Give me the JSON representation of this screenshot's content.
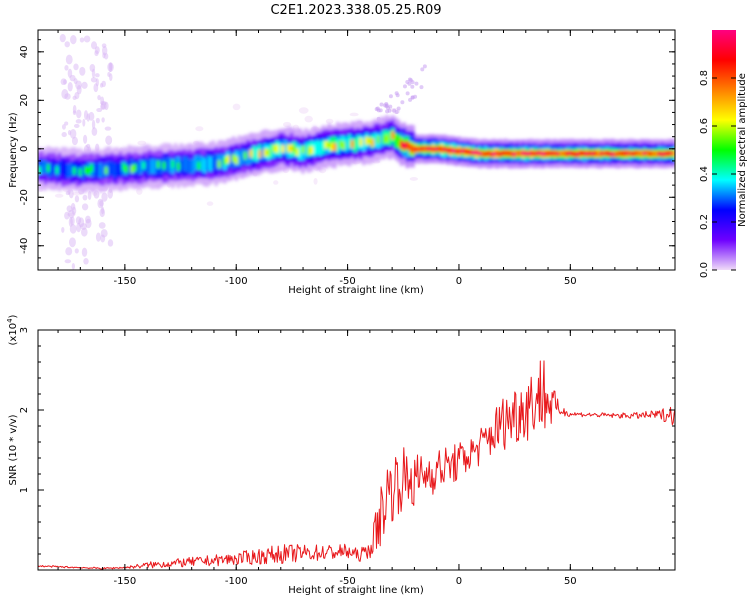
{
  "title": "C2E1.2023.338.05.25.R09",
  "chart_data": [
    {
      "type": "heatmap",
      "xlabel": "Height of straight line (km)",
      "ylabel": "Frequency (Hz)",
      "xlim": [
        -189,
        97
      ],
      "ylim": [
        -50,
        49
      ],
      "xticks": [
        -150,
        -100,
        -50,
        0,
        50
      ],
      "yticks": [
        -40,
        -20,
        0,
        20,
        40
      ],
      "colorbar": {
        "label": "Normalized spectral amplitude",
        "range": [
          0,
          1
        ],
        "ticks": [
          "0.0",
          "0.2",
          "0.4",
          "0.6",
          "0.8"
        ],
        "colors": [
          "#f0dcf8",
          "#6e00ff",
          "#0000ff",
          "#00ffff",
          "#00ff00",
          "#ffff00",
          "#ff8000",
          "#ff0000",
          "#ff0080"
        ]
      },
      "ridge": {
        "x": [
          -189,
          -170,
          -150,
          -130,
          -110,
          -100,
          -90,
          -80,
          -70,
          -60,
          -50,
          -40,
          -35,
          -30,
          -25,
          -20,
          -10,
          0,
          10,
          20,
          30,
          40,
          50,
          60,
          70,
          80,
          90,
          97
        ],
        "frequency": [
          -8,
          -9,
          -8,
          -7,
          -6,
          -4,
          -2,
          0,
          -1,
          1,
          2,
          3,
          4,
          5,
          2,
          0,
          0,
          -1,
          -2,
          -2,
          -2,
          -2,
          -2,
          -2,
          -2,
          -2,
          -2,
          -2
        ],
        "peak_amplitude": [
          0.45,
          0.45,
          0.5,
          0.5,
          0.55,
          0.55,
          0.6,
          0.6,
          0.6,
          0.65,
          0.65,
          0.6,
          0.6,
          0.7,
          0.85,
          0.9,
          0.95,
          0.95,
          0.92,
          0.9,
          0.9,
          0.88,
          0.85,
          0.85,
          0.85,
          0.85,
          0.85,
          0.85
        ]
      }
    },
    {
      "type": "line",
      "xlabel": "Height of straight line (km)",
      "ylabel": "SNR (10 * v/v)",
      "yscale_label": "(x10",
      "yscale_exponent": "4",
      "scale": 10000,
      "xlim": [
        -189,
        97
      ],
      "ylim": [
        0,
        3
      ],
      "xticks": [
        -150,
        -100,
        -50,
        0,
        50
      ],
      "yticks": [
        1,
        2,
        3
      ],
      "color": "#e8191c",
      "series": [
        {
          "x": [
            -189,
            -180,
            -170,
            -160,
            -150,
            -140,
            -130,
            -120,
            -110,
            -100,
            -90,
            -80,
            -70,
            -60,
            -50,
            -45,
            -40,
            -36,
            -33,
            -30,
            -25,
            -20,
            -15,
            -10,
            -5,
            0,
            5,
            10,
            15,
            20,
            25,
            30,
            35,
            38,
            40,
            45,
            50,
            60,
            70,
            80,
            90,
            97
          ],
          "y": [
            0.05,
            0.04,
            0.03,
            0.02,
            0.03,
            0.06,
            0.08,
            0.1,
            0.12,
            0.14,
            0.17,
            0.2,
            0.21,
            0.22,
            0.23,
            0.18,
            0.25,
            0.6,
            0.9,
            1.05,
            1.15,
            1.1,
            1.2,
            1.25,
            1.3,
            1.35,
            1.45,
            1.55,
            1.7,
            1.85,
            1.95,
            2.05,
            2.15,
            2.25,
            2.1,
            2.0,
            1.95,
            1.94,
            1.93,
            1.93,
            1.94,
            1.95
          ],
          "noise": [
            0.01,
            0.01,
            0.01,
            0.01,
            0.01,
            0.04,
            0.05,
            0.06,
            0.07,
            0.08,
            0.1,
            0.12,
            0.11,
            0.1,
            0.1,
            0.08,
            0.1,
            0.35,
            0.45,
            0.45,
            0.4,
            0.35,
            0.3,
            0.28,
            0.25,
            0.25,
            0.22,
            0.25,
            0.3,
            0.35,
            0.4,
            0.45,
            0.45,
            0.55,
            0.4,
            0.08,
            0.03,
            0.03,
            0.03,
            0.04,
            0.06,
            0.15
          ]
        }
      ]
    }
  ]
}
